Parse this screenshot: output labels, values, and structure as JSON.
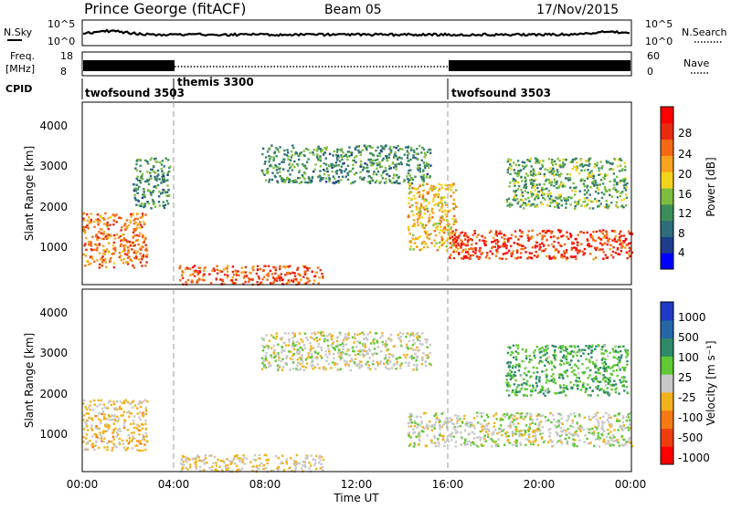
{
  "header": {
    "station": "Prince George (fitACF)",
    "beam": "Beam 05",
    "date": "17/Nov/2015"
  },
  "sky_panel": {
    "left_label": "N.Sky",
    "right_label": "N.Search",
    "left_ticks": [
      "10^5",
      "10^0"
    ],
    "right_ticks": [
      "10^5",
      "10^0"
    ],
    "right_legend_style": "dotted"
  },
  "freq_panel": {
    "left_label_1": "Freq.",
    "left_label_2": "[MHz]",
    "right_label": "Nave",
    "left_ticks": [
      "18",
      "8"
    ],
    "right_ticks": [
      "60",
      "0"
    ]
  },
  "cpid_panel": {
    "label": "CPID",
    "segments": [
      {
        "name": "twofsound 3503",
        "start_hour": 0,
        "end_hour": 4.0
      },
      {
        "name": "themis 3300",
        "start_hour": 4.0,
        "end_hour": 16.0
      },
      {
        "name": "twofsound 3503",
        "start_hour": 16.0,
        "end_hour": 24.0
      }
    ]
  },
  "power_colorbar": {
    "label": "Power [dB]",
    "ticks": [
      "28",
      "24",
      "20",
      "16",
      "12",
      "8",
      "4"
    ],
    "colors": [
      "#0000ff",
      "#1e3c8c",
      "#2e6e7a",
      "#3d8f5a",
      "#7fbf3f",
      "#f2d21b",
      "#f7a31e",
      "#f46a14",
      "#e82a10",
      "#ff0000"
    ]
  },
  "velocity_colorbar": {
    "label": "Velocity [m s⁻¹]",
    "ticks": [
      "1000",
      "500",
      "100",
      "25",
      "-25",
      "-100",
      "-500",
      "-1000"
    ],
    "colors": [
      "#1e3cc8",
      "#2468a8",
      "#2f8a6a",
      "#5fc832",
      "#c8c8c8",
      "#f2b21b",
      "#f47a14",
      "#ef3f0f",
      "#ff0000"
    ]
  },
  "axes": {
    "ylabel": "Slant Range [km]",
    "xlabel": "Time UT",
    "yticks": [
      "4000",
      "3000",
      "2000",
      "1000"
    ],
    "xticks": [
      "00:00",
      "04:00",
      "08:00",
      "12:00",
      "16:00",
      "20:00",
      "00:00"
    ]
  },
  "chart_data": {
    "type": "heatmap",
    "title": "Prince George (fitACF)  Beam 05  17/Nov/2015",
    "xlabel": "Time UT",
    "ylabel": "Slant Range [km]",
    "xlim_hours": [
      0,
      24
    ],
    "ylim_km": [
      180,
      4500
    ],
    "panels": [
      {
        "name": "Power [dB]",
        "scale_db": [
          0,
          30
        ],
        "scatter_regions": [
          {
            "t_start": 0.0,
            "t_end": 2.8,
            "range_low": 600,
            "range_high": 1900,
            "level_db": 22
          },
          {
            "t_start": 2.2,
            "t_end": 3.8,
            "range_low": 2000,
            "range_high": 3200,
            "level_db": 10
          },
          {
            "t_start": 4.2,
            "t_end": 10.5,
            "range_low": 200,
            "range_high": 650,
            "level_db": 24
          },
          {
            "t_start": 7.8,
            "t_end": 15.2,
            "range_low": 2600,
            "range_high": 3500,
            "level_db": 10
          },
          {
            "t_start": 14.2,
            "t_end": 16.3,
            "range_low": 1000,
            "range_high": 2600,
            "level_db": 18
          },
          {
            "t_start": 16.0,
            "t_end": 24.0,
            "range_low": 800,
            "range_high": 1500,
            "level_db": 25
          },
          {
            "t_start": 18.5,
            "t_end": 23.8,
            "range_low": 2000,
            "range_high": 3200,
            "level_db": 12
          }
        ]
      },
      {
        "name": "Velocity [m s-1]",
        "scale_ms": [
          -1000,
          1000
        ],
        "scatter_regions": [
          {
            "t_start": 0.0,
            "t_end": 2.8,
            "range_low": 700,
            "range_high": 1900,
            "velocity": -150
          },
          {
            "t_start": 4.2,
            "t_end": 10.5,
            "range_low": 200,
            "range_high": 600,
            "velocity": -100
          },
          {
            "t_start": 7.8,
            "t_end": 15.2,
            "range_low": 2600,
            "range_high": 3500,
            "velocity": 0
          },
          {
            "t_start": 14.2,
            "t_end": 24.0,
            "range_low": 800,
            "range_high": 1600,
            "velocity": 0
          },
          {
            "t_start": 18.5,
            "t_end": 23.8,
            "range_low": 2000,
            "range_high": 3200,
            "velocity": 300
          }
        ]
      }
    ],
    "cpid_change_hours": [
      4.0,
      16.0
    ],
    "grid": false
  }
}
